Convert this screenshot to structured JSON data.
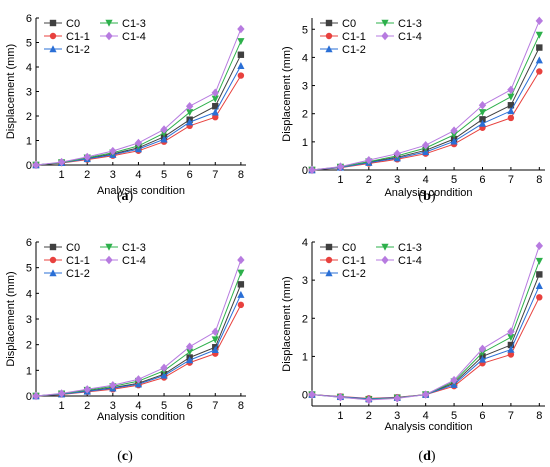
{
  "chart_data": [
    {
      "panel_label": "a",
      "type": "line",
      "xlabel": "Analysis condition",
      "ylabel": "Displacement  (mm)",
      "x": [
        0,
        1,
        2,
        3,
        4,
        5,
        6,
        7,
        8
      ],
      "xticks": [
        1,
        2,
        3,
        4,
        5,
        6,
        7,
        8
      ],
      "ylim": [
        0,
        6
      ],
      "yticks": [
        0,
        1,
        2,
        3,
        4,
        5,
        6
      ],
      "legend_position": "top-left",
      "series": [
        {
          "name": "C0",
          "color": "#404040",
          "marker": "square",
          "values": [
            0,
            0.1,
            0.27,
            0.45,
            0.7,
            1.15,
            1.85,
            2.4,
            4.5
          ]
        },
        {
          "name": "C1-1",
          "color": "#e8413e",
          "marker": "circle",
          "values": [
            0,
            0.08,
            0.22,
            0.38,
            0.58,
            0.95,
            1.6,
            1.95,
            3.65
          ]
        },
        {
          "name": "C1-2",
          "color": "#2a6fd6",
          "marker": "triangle-up",
          "values": [
            0,
            0.09,
            0.25,
            0.42,
            0.65,
            1.05,
            1.75,
            2.15,
            4.05
          ]
        },
        {
          "name": "C1-3",
          "color": "#2db04b",
          "marker": "triangle-down",
          "values": [
            0,
            0.1,
            0.3,
            0.5,
            0.78,
            1.3,
            2.15,
            2.7,
            5.05
          ]
        },
        {
          "name": "C1-4",
          "color": "#b77be0",
          "marker": "diamond",
          "values": [
            0,
            0.12,
            0.33,
            0.57,
            0.9,
            1.45,
            2.4,
            2.95,
            5.55
          ]
        }
      ]
    },
    {
      "panel_label": "b",
      "type": "line",
      "xlabel": "Analysis condition",
      "ylabel": "Displacement  (mm)",
      "x": [
        0,
        1,
        2,
        3,
        4,
        5,
        6,
        7,
        8
      ],
      "xticks": [
        1,
        2,
        3,
        4,
        5,
        6,
        7,
        8
      ],
      "ylim": [
        0,
        5.4
      ],
      "yticks": [
        0,
        1,
        2,
        3,
        4,
        5
      ],
      "legend_position": "top-left",
      "series": [
        {
          "name": "C0",
          "color": "#404040",
          "marker": "square",
          "values": [
            0,
            0.1,
            0.28,
            0.45,
            0.7,
            1.1,
            1.8,
            2.3,
            4.35
          ]
        },
        {
          "name": "C1-1",
          "color": "#e8413e",
          "marker": "circle",
          "values": [
            0,
            0.08,
            0.23,
            0.38,
            0.58,
            0.92,
            1.5,
            1.85,
            3.5
          ]
        },
        {
          "name": "C1-2",
          "color": "#2a6fd6",
          "marker": "triangle-up",
          "values": [
            0,
            0.09,
            0.26,
            0.42,
            0.64,
            1.02,
            1.65,
            2.1,
            3.9
          ]
        },
        {
          "name": "C1-3",
          "color": "#2db04b",
          "marker": "triangle-down",
          "values": [
            0,
            0.11,
            0.3,
            0.5,
            0.78,
            1.25,
            2.05,
            2.6,
            4.8
          ]
        },
        {
          "name": "C1-4",
          "color": "#b77be0",
          "marker": "diamond",
          "values": [
            0,
            0.12,
            0.35,
            0.58,
            0.88,
            1.4,
            2.3,
            2.85,
            5.3
          ]
        }
      ]
    },
    {
      "panel_label": "c",
      "type": "line",
      "xlabel": "Analysis condition",
      "ylabel": "Displacement  (mm)",
      "x": [
        0,
        1,
        2,
        3,
        4,
        5,
        6,
        7,
        8
      ],
      "xticks": [
        1,
        2,
        3,
        4,
        5,
        6,
        7,
        8
      ],
      "ylim": [
        0,
        6
      ],
      "yticks": [
        0,
        1,
        2,
        3,
        4,
        5,
        6
      ],
      "legend_position": "top-left",
      "series": [
        {
          "name": "C0",
          "color": "#404040",
          "marker": "square",
          "values": [
            0,
            0.08,
            0.2,
            0.32,
            0.5,
            0.85,
            1.5,
            1.9,
            4.35
          ]
        },
        {
          "name": "C1-1",
          "color": "#e8413e",
          "marker": "circle",
          "values": [
            0,
            0.06,
            0.16,
            0.26,
            0.42,
            0.72,
            1.3,
            1.65,
            3.55
          ]
        },
        {
          "name": "C1-2",
          "color": "#2a6fd6",
          "marker": "triangle-up",
          "values": [
            0,
            0.07,
            0.18,
            0.3,
            0.46,
            0.8,
            1.4,
            1.8,
            3.95
          ]
        },
        {
          "name": "C1-3",
          "color": "#2db04b",
          "marker": "triangle-down",
          "values": [
            0,
            0.09,
            0.23,
            0.37,
            0.58,
            0.98,
            1.72,
            2.2,
            4.8
          ]
        },
        {
          "name": "C1-4",
          "color": "#b77be0",
          "marker": "diamond",
          "values": [
            0,
            0.1,
            0.26,
            0.42,
            0.65,
            1.1,
            1.92,
            2.5,
            5.3
          ]
        }
      ]
    },
    {
      "panel_label": "d",
      "type": "line",
      "xlabel": "Analysis condition",
      "ylabel": "Displacement  (mm)",
      "x": [
        0,
        1,
        2,
        3,
        4,
        5,
        6,
        7,
        8
      ],
      "xticks": [
        1,
        2,
        3,
        4,
        5,
        6,
        7,
        8
      ],
      "ylim": [
        -0.3,
        4
      ],
      "yticks": [
        0,
        1,
        2,
        3,
        4
      ],
      "legend_position": "top-left",
      "series": [
        {
          "name": "C0",
          "color": "#404040",
          "marker": "square",
          "values": [
            0,
            -0.06,
            -0.12,
            -0.08,
            0.0,
            0.3,
            1.0,
            1.3,
            3.15
          ]
        },
        {
          "name": "C1-1",
          "color": "#e8413e",
          "marker": "circle",
          "values": [
            0,
            -0.05,
            -0.1,
            -0.07,
            0.0,
            0.22,
            0.82,
            1.05,
            2.55
          ]
        },
        {
          "name": "C1-2",
          "color": "#2a6fd6",
          "marker": "triangle-up",
          "values": [
            0,
            -0.06,
            -0.11,
            -0.08,
            0.0,
            0.26,
            0.92,
            1.18,
            2.85
          ]
        },
        {
          "name": "C1-3",
          "color": "#2db04b",
          "marker": "triangle-down",
          "values": [
            0,
            -0.07,
            -0.13,
            -0.09,
            0.0,
            0.34,
            1.1,
            1.5,
            3.5
          ]
        },
        {
          "name": "C1-4",
          "color": "#b77be0",
          "marker": "diamond",
          "values": [
            0,
            -0.07,
            -0.14,
            -0.1,
            0.0,
            0.38,
            1.2,
            1.65,
            3.9
          ]
        }
      ]
    }
  ]
}
